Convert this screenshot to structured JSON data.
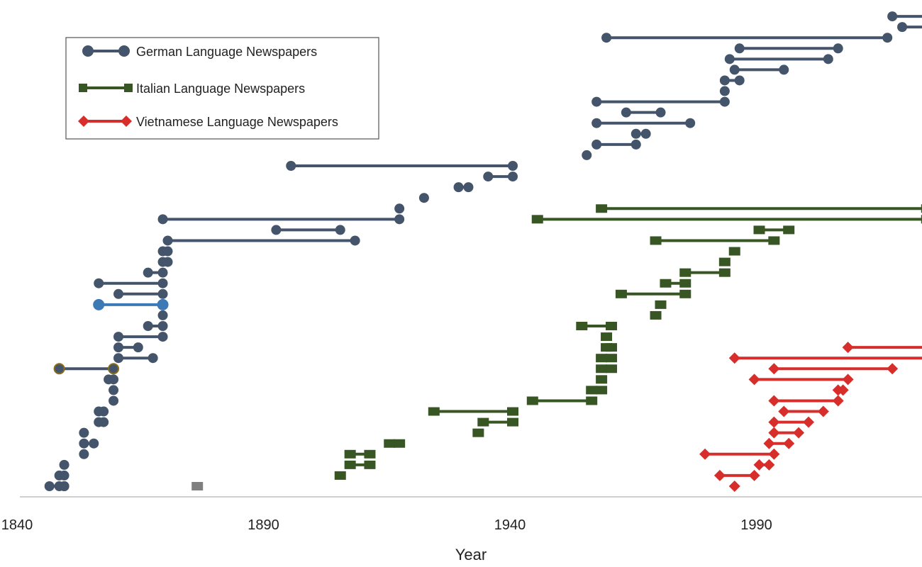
{
  "chart_data": {
    "type": "scatter",
    "xlabel": "Year",
    "xlim": [
      1840,
      2020
    ],
    "xticks": [
      1840,
      1890,
      1940,
      1990
    ],
    "ylabel": "",
    "grid": false,
    "legend_position": "top-left",
    "legend": [
      {
        "label": "German Language Newspapers",
        "series": "german"
      },
      {
        "label": "Italian Language Newspapers",
        "series": "italian"
      },
      {
        "label": "Vietnamese Language Newspapers",
        "series": "vietnamese"
      }
    ],
    "series": [
      {
        "key": "german",
        "color": "#44546a",
        "marker": "circle",
        "intervals": [
          [
            1846,
            1849
          ],
          [
            1848,
            1849
          ],
          [
            1848,
            1849
          ],
          [
            1849
          ],
          [
            1853
          ],
          [
            1853,
            1855
          ],
          [
            1853
          ],
          [
            1856,
            1857
          ],
          [
            1856,
            1857
          ],
          [
            1859
          ],
          [
            1859
          ],
          [
            1858,
            1859
          ],
          [
            1848,
            1859
          ],
          [
            1860,
            1867
          ],
          [
            1860,
            1864
          ],
          [
            1860,
            1869
          ],
          [
            1866,
            1869
          ],
          [
            1869
          ],
          [
            1856,
            1869
          ],
          [
            1860,
            1869
          ],
          [
            1856,
            1869
          ],
          [
            1866,
            1869
          ],
          [
            1869,
            1870
          ],
          [
            1869,
            1870
          ],
          [
            1870,
            1908
          ],
          [
            1892,
            1905
          ],
          [
            1869,
            1917
          ],
          [
            1917
          ],
          [
            1922
          ],
          [
            1929,
            1931
          ],
          [
            1935,
            1940
          ],
          [
            1895,
            1940
          ],
          [
            1955
          ],
          [
            1957,
            1965
          ],
          [
            1965,
            1967
          ],
          [
            1957,
            1976
          ],
          [
            1963,
            1970
          ],
          [
            1957,
            1983
          ],
          [
            1983
          ],
          [
            1983,
            1986
          ],
          [
            1985,
            1995
          ],
          [
            1984,
            2004
          ],
          [
            1986,
            2006
          ],
          [
            1959,
            2016
          ],
          [
            2019,
            2024
          ],
          [
            2017,
            2024
          ]
        ],
        "highlighted_points": [
          {
            "interval_index": 18,
            "color": "#3d7ab5"
          },
          {
            "interval_index": 12,
            "color": "#8a6d1c"
          }
        ]
      },
      {
        "key": "italian",
        "color": "#375623",
        "marker": "square",
        "intervals": [
          [
            1905
          ],
          [
            1907,
            1911
          ],
          [
            1907,
            1911
          ],
          [
            1915,
            1917
          ],
          [
            1933
          ],
          [
            1934,
            1940
          ],
          [
            1924,
            1940
          ],
          [
            1944,
            1956
          ],
          [
            1956,
            1958
          ],
          [
            1958
          ],
          [
            1958,
            1960
          ],
          [
            1958,
            1960
          ],
          [
            1959,
            1960
          ],
          [
            1959
          ],
          [
            1954,
            1960
          ],
          [
            1969
          ],
          [
            1970
          ],
          [
            1962,
            1975
          ],
          [
            1971,
            1975
          ],
          [
            1975,
            1983
          ],
          [
            1983
          ],
          [
            1985
          ],
          [
            1969,
            1993
          ],
          [
            1990,
            1996
          ],
          [
            1945,
            2024
          ],
          [
            1958,
            2024
          ]
        ],
        "outliers": [
          {
            "x": 1876,
            "color": "#7f7f7f"
          }
        ]
      },
      {
        "key": "vietnamese",
        "color": "#d82e2b",
        "marker": "diamond",
        "intervals": [
          [
            1985
          ],
          [
            1982,
            1989
          ],
          [
            1990,
            1992
          ],
          [
            1979,
            1993
          ],
          [
            1992,
            1996
          ],
          [
            1993,
            1998
          ],
          [
            1993,
            2000
          ],
          [
            1995,
            2003
          ],
          [
            1993,
            2006
          ],
          [
            2006,
            2007
          ],
          [
            1989,
            2008
          ],
          [
            1993,
            2017
          ],
          [
            1985,
            2024
          ],
          [
            2008,
            2024
          ]
        ]
      }
    ]
  }
}
